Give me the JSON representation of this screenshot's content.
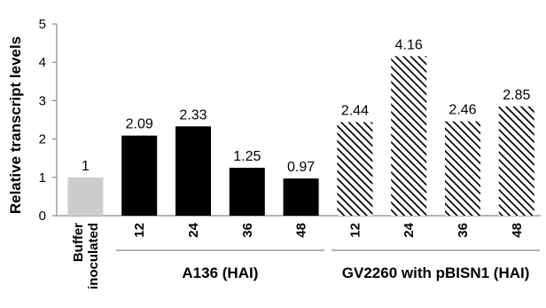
{
  "chart_data": {
    "type": "bar",
    "ylabel": "Relative transcript levels",
    "ylim": [
      0,
      5
    ],
    "yticks": [
      0,
      1,
      2,
      3,
      4,
      5
    ],
    "grid": false,
    "legend": "none",
    "categories": [
      {
        "label_lines": [
          "Buffer",
          "inoculated"
        ],
        "value": 1,
        "value_label": "1",
        "style": "gray"
      },
      {
        "label_lines": [
          "12"
        ],
        "value": 2.09,
        "value_label": "2.09",
        "style": "black"
      },
      {
        "label_lines": [
          "24"
        ],
        "value": 2.33,
        "value_label": "2.33",
        "style": "black"
      },
      {
        "label_lines": [
          "36"
        ],
        "value": 1.25,
        "value_label": "1.25",
        "style": "black"
      },
      {
        "label_lines": [
          "48"
        ],
        "value": 0.97,
        "value_label": "0.97",
        "style": "black"
      },
      {
        "label_lines": [
          "12"
        ],
        "value": 2.44,
        "value_label": "2.44",
        "style": "hatched"
      },
      {
        "label_lines": [
          "24"
        ],
        "value": 4.16,
        "value_label": "4.16",
        "style": "hatched"
      },
      {
        "label_lines": [
          "36"
        ],
        "value": 2.46,
        "value_label": "2.46",
        "style": "hatched"
      },
      {
        "label_lines": [
          "48"
        ],
        "value": 2.85,
        "value_label": "2.85",
        "style": "hatched"
      }
    ],
    "groups": [
      {
        "label": "A136 (HAI)",
        "start": 1,
        "end": 4
      },
      {
        "label": "GV2260 with pBISN1 (HAI)",
        "start": 5,
        "end": 8
      }
    ],
    "colors": {
      "gray": "#cccccc",
      "black": "#000000",
      "hatch": "#000000"
    }
  }
}
